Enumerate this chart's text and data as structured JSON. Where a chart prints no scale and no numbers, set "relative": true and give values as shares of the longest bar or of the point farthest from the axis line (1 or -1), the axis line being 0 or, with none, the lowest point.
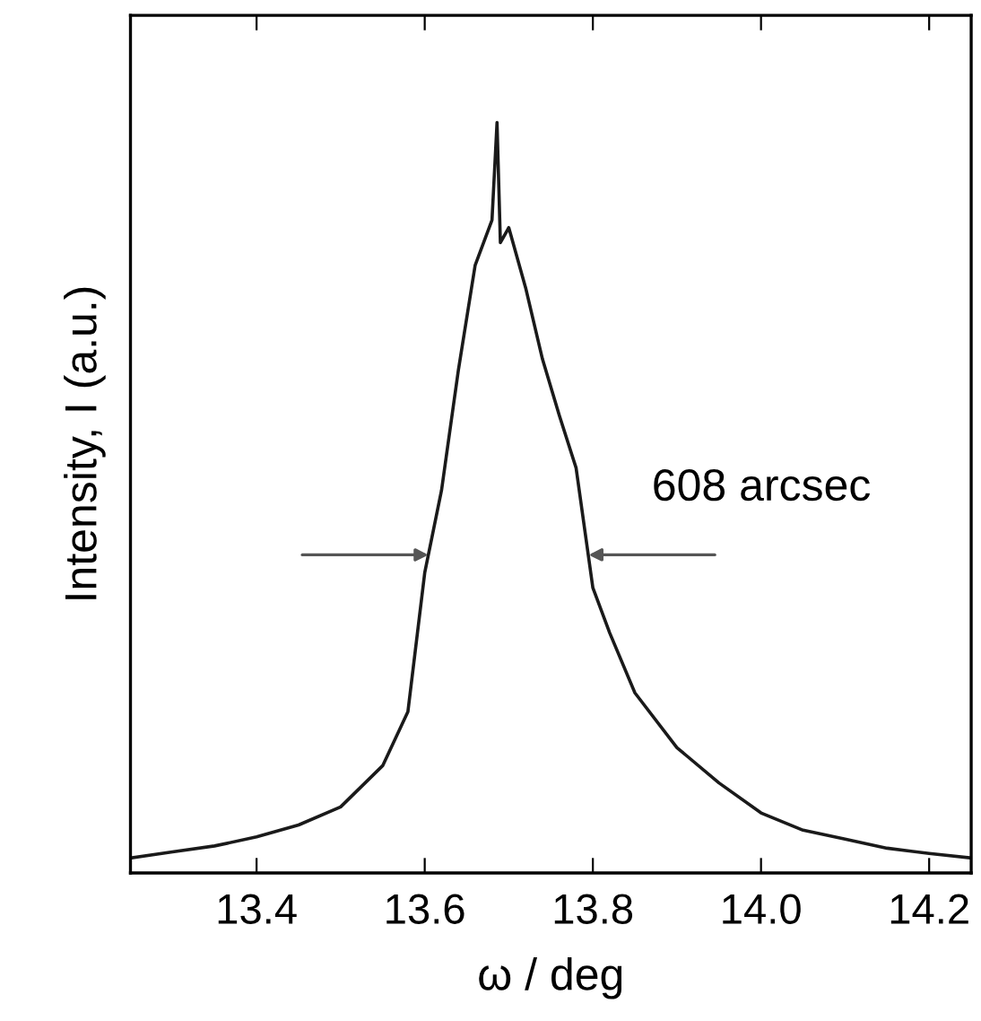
{
  "chart_data": {
    "type": "line",
    "relative": true,
    "xlabel": "ω / deg",
    "ylabel": "Intensity, I (a.u.)",
    "xlim": [
      13.25,
      14.25
    ],
    "xticks": [
      13.4,
      13.6,
      13.8,
      {
        "value": 14.0,
        "label": "14.0"
      },
      14.2
    ],
    "grid": false,
    "marker": "none",
    "line_style": "solid",
    "series": [
      {
        "color": "#1a1a1a",
        "x": [
          13.25,
          13.3,
          13.35,
          13.4,
          13.45,
          13.5,
          13.55,
          13.58,
          13.6,
          13.62,
          13.64,
          13.66,
          13.68,
          13.686,
          13.69,
          13.7,
          13.72,
          13.74,
          13.76,
          13.78,
          13.8,
          13.82,
          13.85,
          13.9,
          13.95,
          14.0,
          14.05,
          14.1,
          14.15,
          14.2,
          14.25
        ],
        "values": [
          0.02,
          0.028,
          0.036,
          0.048,
          0.064,
          0.088,
          0.143,
          0.215,
          0.4,
          0.51,
          0.67,
          0.81,
          0.87,
          1.0,
          0.84,
          0.86,
          0.78,
          0.685,
          0.61,
          0.54,
          0.38,
          0.32,
          0.24,
          0.167,
          0.12,
          0.08,
          0.057,
          0.045,
          0.033,
          0.026,
          0.02
        ]
      }
    ],
    "annotations": [
      {
        "text": "608 arcsec",
        "x": 13.795,
        "y": 0.424
      }
    ]
  }
}
